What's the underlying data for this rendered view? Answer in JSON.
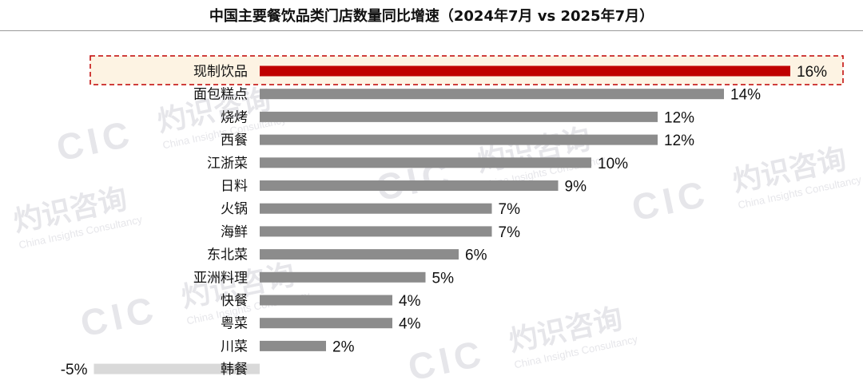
{
  "chart_data": {
    "type": "bar",
    "orientation": "horizontal",
    "title": "中国主要餐饮品类门店数量同比增速（2024年7月 vs 2025年7月）",
    "categories": [
      "现制饮品",
      "面包糕点",
      "烧烤",
      "西餐",
      "江浙菜",
      "日料",
      "火锅",
      "海鲜",
      "东北菜",
      "亚洲料理",
      "快餐",
      "粤菜",
      "川菜",
      "韩餐"
    ],
    "values": [
      16,
      14,
      12,
      12,
      10,
      9,
      7,
      7,
      6,
      5,
      4,
      4,
      2,
      -5
    ],
    "value_labels": [
      "16%",
      "14%",
      "12%",
      "12%",
      "10%",
      "9%",
      "7%",
      "7%",
      "6%",
      "5%",
      "4%",
      "4%",
      "2%",
      "-5%"
    ],
    "highlight_index": 0,
    "negative_index": 13,
    "colors": {
      "highlight": "#c00000",
      "bar": "#8c8c8c",
      "negative": "#d9d9d9",
      "highlight_box_border": "#c00000",
      "highlight_box_fill": "#fdf3e3"
    },
    "xlabel": "",
    "ylabel": "",
    "xlim": [
      -5,
      16
    ]
  },
  "watermark": {
    "logo_text": "CIC",
    "cn_text": "灼识咨询",
    "en_text": "China Insights Consultancy",
    "color": "#e6e6ea"
  }
}
